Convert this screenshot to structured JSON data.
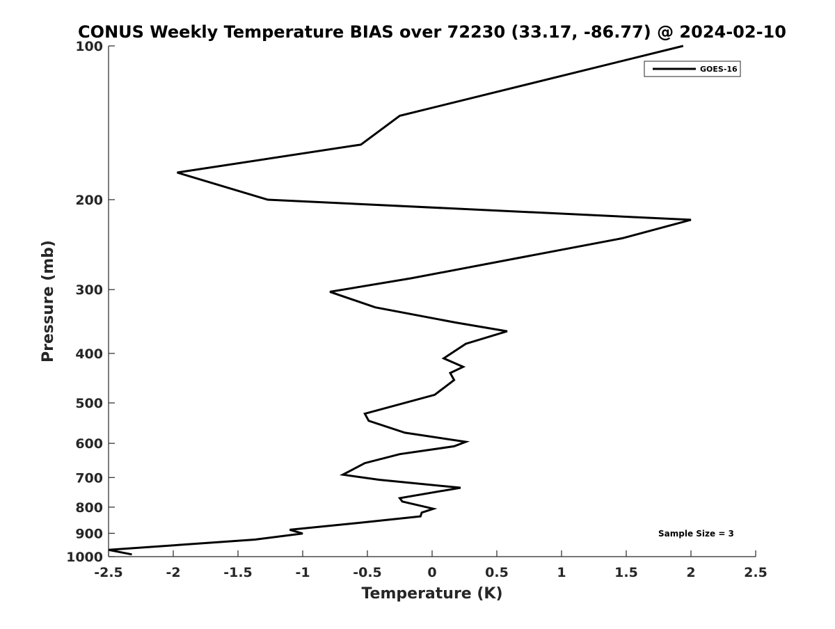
{
  "chart_data": {
    "type": "line",
    "title": "CONUS Weekly Temperature BIAS over 72230 (33.17, -86.77) @ 2024-02-10",
    "xlabel": "Temperature (K)",
    "ylabel": "Pressure (mb)",
    "xlim": [
      -2.5,
      2.5
    ],
    "ylim": [
      1000,
      100
    ],
    "yscale": "log",
    "yreversed": true,
    "grid": false,
    "legend_position": "top-right",
    "xticks": [
      "-2.5",
      "-2",
      "-1.5",
      "-1",
      "-0.5",
      "0",
      "0.5",
      "1",
      "1.5",
      "2",
      "2.5"
    ],
    "xtick_values": [
      -2.5,
      -2,
      -1.5,
      -1,
      -0.5,
      0,
      0.5,
      1,
      1.5,
      2,
      2.5
    ],
    "yticks": [
      "100",
      "200",
      "300",
      "400",
      "500",
      "600",
      "700",
      "800",
      "900",
      "1000"
    ],
    "ytick_values": [
      100,
      200,
      300,
      400,
      500,
      600,
      700,
      800,
      900,
      1000
    ],
    "series": [
      {
        "name": "GOES-16",
        "color": "#000000",
        "x": [
          1.94,
          -0.25,
          -0.55,
          -1.97,
          -1.27,
          2.0,
          1.47,
          -0.16,
          -0.79,
          -0.44,
          0.18,
          0.58,
          0.26,
          0.09,
          0.24,
          0.14,
          0.17,
          0.02,
          -0.52,
          -0.49,
          -0.21,
          0.26,
          0.17,
          -0.25,
          -0.52,
          -0.69,
          -0.41,
          0.22,
          -0.25,
          -0.23,
          0.01,
          -0.08,
          -0.09,
          -0.51,
          -1.1,
          -1.0,
          -1.37,
          -2.5,
          -2.32
        ],
        "y": [
          100,
          137,
          156,
          177,
          200,
          219,
          238,
          285,
          303,
          325,
          348,
          362,
          383,
          409,
          425,
          437,
          451,
          482,
          525,
          542,
          572,
          596,
          608,
          630,
          656,
          691,
          707,
          733,
          768,
          780,
          806,
          820,
          834,
          856,
          886,
          901,
          926,
          970,
          990
        ]
      }
    ],
    "annotations": [
      "Sample Size = 3"
    ]
  }
}
